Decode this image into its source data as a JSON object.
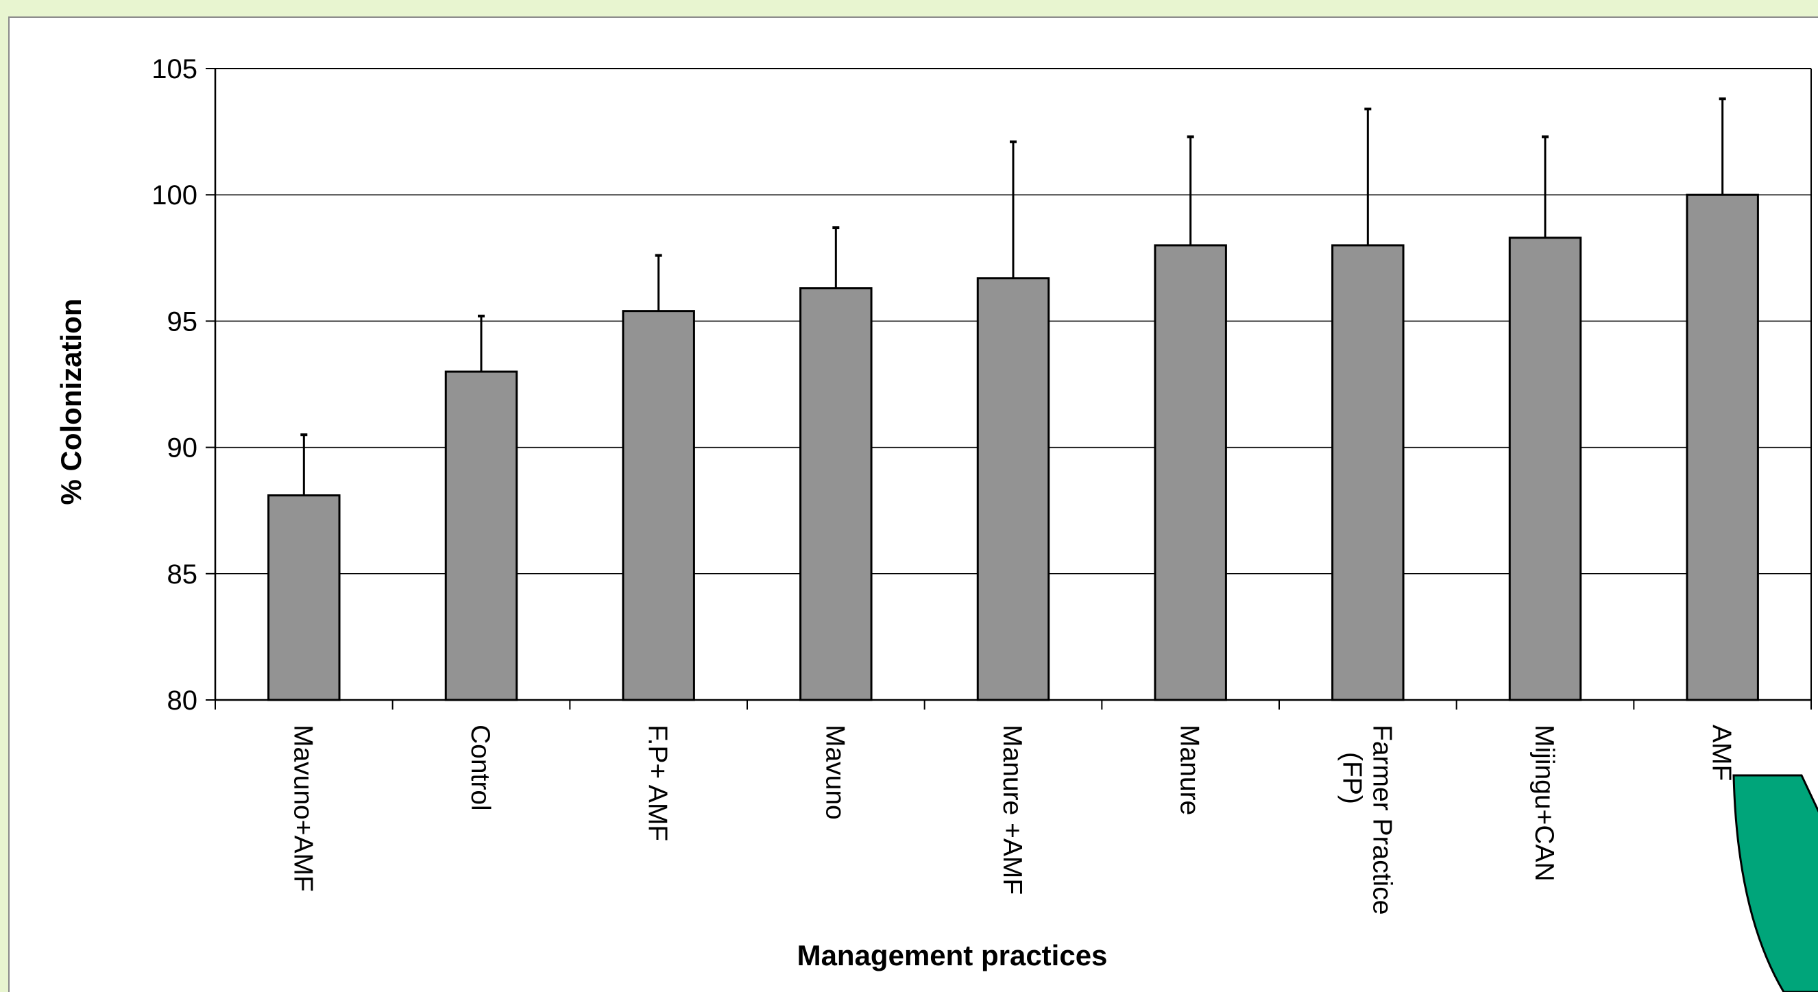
{
  "chart_data": {
    "type": "bar",
    "xlabel": "Management practices",
    "ylabel": "%  Colonization",
    "ylim": [
      80,
      105
    ],
    "yticks": [
      80,
      85,
      90,
      95,
      100,
      105
    ],
    "grid": true,
    "legend": "none",
    "categories": [
      [
        "Mavuno+AMF"
      ],
      [
        "Control"
      ],
      [
        "F.P+ AMF"
      ],
      [
        "Mavuno"
      ],
      [
        "Manure +AMF"
      ],
      [
        "Manure"
      ],
      [
        "Farmer Practice",
        "(FP)"
      ],
      [
        "Mijingu+CAN"
      ],
      [
        "AMF"
      ]
    ],
    "values": [
      88.1,
      93.0,
      95.4,
      96.3,
      96.7,
      98.0,
      98.0,
      98.3,
      100.0
    ],
    "error_bars_upper": [
      90.5,
      95.2,
      97.6,
      98.7,
      102.1,
      102.3,
      103.4,
      102.3,
      103.8
    ],
    "colors": {
      "bar": "#939393",
      "bar_edge": "#000000",
      "grid": "#000000",
      "background": "#e8f5d0",
      "decoration": "#00a57a"
    }
  }
}
